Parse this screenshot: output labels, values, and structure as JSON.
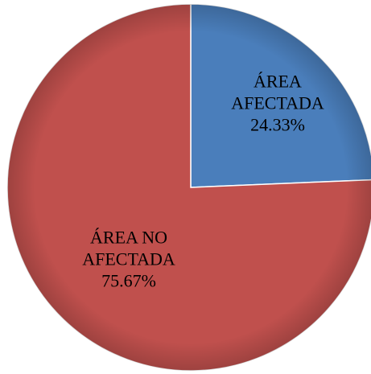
{
  "chart_data": {
    "type": "pie",
    "categories": [
      "ÁREA AFECTADA",
      "ÁREA NO AFECTADA"
    ],
    "series": [
      {
        "colors": [
          "#4a7ebb",
          "#c0504d"
        ],
        "values": [
          24.33,
          75.67
        ],
        "value_labels": [
          "24.33%",
          "75.67%"
        ]
      }
    ]
  }
}
